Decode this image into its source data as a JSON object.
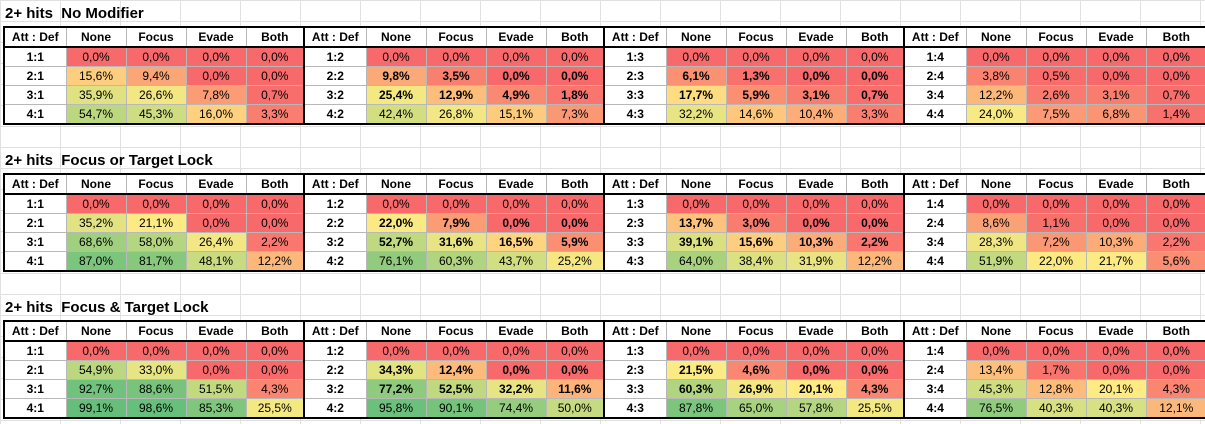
{
  "col_headers": [
    "Att : Def",
    "None",
    "Focus",
    "Evade",
    "Both"
  ],
  "blocks": [
    {
      "title": "2+ hits  No Modifier",
      "groups": [
        {
          "rows": [
            {
              "label": "1:1",
              "bold": false,
              "vals": [
                "0,0%",
                "0,0%",
                "0,0%",
                "0,0%"
              ]
            },
            {
              "label": "2:1",
              "bold": false,
              "vals": [
                "15,6%",
                "9,4%",
                "0,0%",
                "0,0%"
              ]
            },
            {
              "label": "3:1",
              "bold": false,
              "vals": [
                "35,9%",
                "26,6%",
                "7,8%",
                "0,7%"
              ]
            },
            {
              "label": "4:1",
              "bold": false,
              "vals": [
                "54,7%",
                "45,3%",
                "16,0%",
                "3,3%"
              ]
            }
          ]
        },
        {
          "rows": [
            {
              "label": "1:2",
              "bold": false,
              "vals": [
                "0,0%",
                "0,0%",
                "0,0%",
                "0,0%"
              ]
            },
            {
              "label": "2:2",
              "bold": true,
              "vals": [
                "9,8%",
                "3,5%",
                "0,0%",
                "0,0%"
              ]
            },
            {
              "label": "3:2",
              "bold": true,
              "vals": [
                "25,4%",
                "12,9%",
                "4,9%",
                "1,8%"
              ]
            },
            {
              "label": "4:2",
              "bold": false,
              "vals": [
                "42,4%",
                "26,8%",
                "15,1%",
                "7,3%"
              ]
            }
          ]
        },
        {
          "rows": [
            {
              "label": "1:3",
              "bold": false,
              "vals": [
                "0,0%",
                "0,0%",
                "0,0%",
                "0,0%"
              ]
            },
            {
              "label": "2:3",
              "bold": true,
              "vals": [
                "6,1%",
                "1,3%",
                "0,0%",
                "0,0%"
              ]
            },
            {
              "label": "3:3",
              "bold": true,
              "vals": [
                "17,7%",
                "5,9%",
                "3,1%",
                "0,7%"
              ]
            },
            {
              "label": "4:3",
              "bold": false,
              "vals": [
                "32,2%",
                "14,6%",
                "10,4%",
                "3,3%"
              ]
            }
          ]
        },
        {
          "rows": [
            {
              "label": "1:4",
              "bold": false,
              "vals": [
                "0,0%",
                "0,0%",
                "0,0%",
                "0,0%"
              ]
            },
            {
              "label": "2:4",
              "bold": false,
              "vals": [
                "3,8%",
                "0,5%",
                "0,0%",
                "0,0%"
              ]
            },
            {
              "label": "3:4",
              "bold": false,
              "vals": [
                "12,2%",
                "2,6%",
                "3,1%",
                "0,7%"
              ]
            },
            {
              "label": "4:4",
              "bold": false,
              "vals": [
                "24,0%",
                "7,5%",
                "6,8%",
                "1,4%"
              ]
            }
          ]
        }
      ]
    },
    {
      "title": "2+ hits  Focus or Target Lock",
      "groups": [
        {
          "rows": [
            {
              "label": "1:1",
              "bold": false,
              "vals": [
                "0,0%",
                "0,0%",
                "0,0%",
                "0,0%"
              ]
            },
            {
              "label": "2:1",
              "bold": false,
              "vals": [
                "35,2%",
                "21,1%",
                "0,0%",
                "0,0%"
              ]
            },
            {
              "label": "3:1",
              "bold": false,
              "vals": [
                "68,6%",
                "58,0%",
                "26,4%",
                "2,2%"
              ]
            },
            {
              "label": "4:1",
              "bold": false,
              "vals": [
                "87,0%",
                "81,7%",
                "48,1%",
                "12,2%"
              ]
            }
          ]
        },
        {
          "rows": [
            {
              "label": "1:2",
              "bold": false,
              "vals": [
                "0,0%",
                "0,0%",
                "0,0%",
                "0,0%"
              ]
            },
            {
              "label": "2:2",
              "bold": true,
              "vals": [
                "22,0%",
                "7,9%",
                "0,0%",
                "0,0%"
              ]
            },
            {
              "label": "3:2",
              "bold": true,
              "vals": [
                "52,7%",
                "31,6%",
                "16,5%",
                "5,9%"
              ]
            },
            {
              "label": "4:2",
              "bold": false,
              "vals": [
                "76,1%",
                "60,3%",
                "43,7%",
                "25,2%"
              ]
            }
          ]
        },
        {
          "rows": [
            {
              "label": "1:3",
              "bold": false,
              "vals": [
                "0,0%",
                "0,0%",
                "0,0%",
                "0,0%"
              ]
            },
            {
              "label": "2:3",
              "bold": true,
              "vals": [
                "13,7%",
                "3,0%",
                "0,0%",
                "0,0%"
              ]
            },
            {
              "label": "3:3",
              "bold": true,
              "vals": [
                "39,1%",
                "15,6%",
                "10,3%",
                "2,2%"
              ]
            },
            {
              "label": "4:3",
              "bold": false,
              "vals": [
                "64,0%",
                "38,4%",
                "31,9%",
                "12,2%"
              ]
            }
          ]
        },
        {
          "rows": [
            {
              "label": "1:4",
              "bold": false,
              "vals": [
                "0,0%",
                "0,0%",
                "0,0%",
                "0,0%"
              ]
            },
            {
              "label": "2:4",
              "bold": false,
              "vals": [
                "8,6%",
                "1,1%",
                "0,0%",
                "0,0%"
              ]
            },
            {
              "label": "3:4",
              "bold": false,
              "vals": [
                "28,3%",
                "7,2%",
                "10,3%",
                "2,2%"
              ]
            },
            {
              "label": "4:4",
              "bold": false,
              "vals": [
                "51,9%",
                "22,0%",
                "21,7%",
                "5,6%"
              ]
            }
          ]
        }
      ]
    },
    {
      "title": "2+ hits  Focus & Target Lock",
      "groups": [
        {
          "rows": [
            {
              "label": "1:1",
              "bold": false,
              "vals": [
                "0,0%",
                "0,0%",
                "0,0%",
                "0,0%"
              ]
            },
            {
              "label": "2:1",
              "bold": false,
              "vals": [
                "54,9%",
                "33,0%",
                "0,0%",
                "0,0%"
              ]
            },
            {
              "label": "3:1",
              "bold": false,
              "vals": [
                "92,7%",
                "88,6%",
                "51,5%",
                "4,3%"
              ]
            },
            {
              "label": "4:1",
              "bold": false,
              "vals": [
                "99,1%",
                "98,6%",
                "85,3%",
                "25,5%"
              ]
            }
          ]
        },
        {
          "rows": [
            {
              "label": "1:2",
              "bold": false,
              "vals": [
                "0,0%",
                "0,0%",
                "0,0%",
                "0,0%"
              ]
            },
            {
              "label": "2:2",
              "bold": true,
              "vals": [
                "34,3%",
                "12,4%",
                "0,0%",
                "0,0%"
              ]
            },
            {
              "label": "3:2",
              "bold": true,
              "vals": [
                "77,2%",
                "52,5%",
                "32,2%",
                "11,6%"
              ]
            },
            {
              "label": "4:2",
              "bold": false,
              "vals": [
                "95,8%",
                "90,1%",
                "74,4%",
                "50,0%"
              ]
            }
          ]
        },
        {
          "rows": [
            {
              "label": "1:3",
              "bold": false,
              "vals": [
                "0,0%",
                "0,0%",
                "0,0%",
                "0,0%"
              ]
            },
            {
              "label": "2:3",
              "bold": true,
              "vals": [
                "21,5%",
                "4,6%",
                "0,0%",
                "0,0%"
              ]
            },
            {
              "label": "3:3",
              "bold": true,
              "vals": [
                "60,3%",
                "26,9%",
                "20,1%",
                "4,3%"
              ]
            },
            {
              "label": "4:3",
              "bold": false,
              "vals": [
                "87,8%",
                "65,0%",
                "57,8%",
                "25,5%"
              ]
            }
          ]
        },
        {
          "rows": [
            {
              "label": "1:4",
              "bold": false,
              "vals": [
                "0,0%",
                "0,0%",
                "0,0%",
                "0,0%"
              ]
            },
            {
              "label": "2:4",
              "bold": false,
              "vals": [
                "13,4%",
                "1,7%",
                "0,0%",
                "0,0%"
              ]
            },
            {
              "label": "3:4",
              "bold": false,
              "vals": [
                "45,3%",
                "12,8%",
                "20,1%",
                "4,3%"
              ]
            },
            {
              "label": "4:4",
              "bold": false,
              "vals": [
                "76,5%",
                "40,3%",
                "40,3%",
                "12,1%"
              ]
            }
          ]
        }
      ]
    }
  ],
  "color_scale": {
    "low": "#f8696b",
    "mid": "#ffeb84",
    "high": "#63be7b"
  }
}
